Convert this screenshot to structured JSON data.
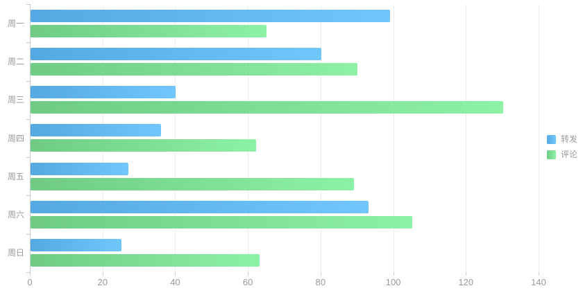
{
  "chart_data": {
    "type": "bar",
    "orientation": "horizontal",
    "title": "",
    "categories": [
      "周一",
      "周二",
      "周三",
      "周四",
      "周五",
      "周六",
      "周日"
    ],
    "series": [
      {
        "name": "转发",
        "values": [
          99,
          80,
          40,
          36,
          27,
          93,
          25
        ],
        "color_start": "#54a9e3",
        "color_end": "#70c6fd"
      },
      {
        "name": "评论",
        "values": [
          65,
          90,
          130,
          62,
          89,
          105,
          63
        ],
        "color_start": "#6fcb84",
        "color_end": "#8df2a3"
      }
    ],
    "xlim": [
      0,
      140
    ],
    "x_ticks": [
      "0",
      "20",
      "40",
      "60",
      "80",
      "100",
      "120",
      "140"
    ],
    "grid": true,
    "legend_position": "middle-right",
    "colors": {
      "axis_label": "#999999",
      "axis_line": "#c9c9c9",
      "grid_line": "#ececec",
      "background": "#ffffff"
    }
  }
}
